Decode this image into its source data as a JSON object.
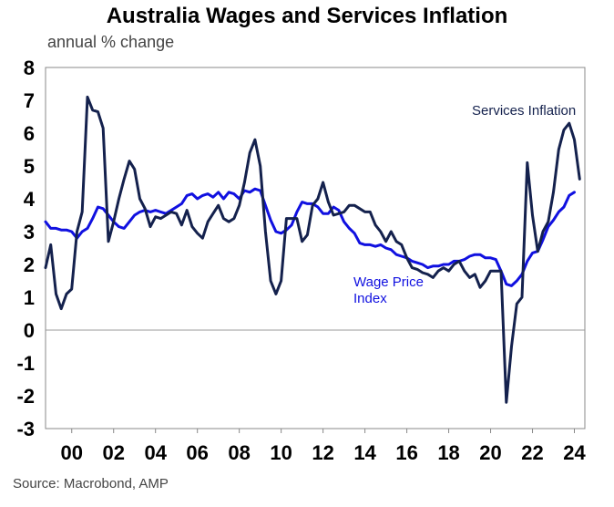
{
  "chart_data": {
    "type": "line",
    "title": "Australia Wages and Services Inflation",
    "subtitle": "annual % change",
    "source": "Source: Macrobond, AMP",
    "xlim": [
      1998.75,
      2024.5
    ],
    "ylim": [
      -3,
      8
    ],
    "yticks": [
      "8",
      "7",
      "6",
      "5",
      "4",
      "3",
      "2",
      "1",
      "0",
      "-1",
      "-2",
      "-3"
    ],
    "xticks": [
      {
        "x": 2000,
        "label": "00"
      },
      {
        "x": 2002,
        "label": "02"
      },
      {
        "x": 2004,
        "label": "04"
      },
      {
        "x": 2006,
        "label": "06"
      },
      {
        "x": 2008,
        "label": "08"
      },
      {
        "x": 2010,
        "label": "10"
      },
      {
        "x": 2012,
        "label": "12"
      },
      {
        "x": 2014,
        "label": "14"
      },
      {
        "x": 2016,
        "label": "16"
      },
      {
        "x": 2018,
        "label": "18"
      },
      {
        "x": 2020,
        "label": "20"
      },
      {
        "x": 2022,
        "label": "22"
      },
      {
        "x": 2024,
        "label": "24"
      }
    ],
    "grid": false,
    "series": [
      {
        "name": "Services Inflation",
        "color": "#14214d",
        "label_position": "right",
        "points": [
          [
            1998.75,
            1.9
          ],
          [
            1999.0,
            2.6
          ],
          [
            1999.25,
            1.1
          ],
          [
            1999.5,
            0.65
          ],
          [
            1999.75,
            1.1
          ],
          [
            2000.0,
            1.25
          ],
          [
            2000.25,
            3.0
          ],
          [
            2000.5,
            3.6
          ],
          [
            2000.75,
            7.1
          ],
          [
            2001.0,
            6.7
          ],
          [
            2001.25,
            6.65
          ],
          [
            2001.5,
            6.15
          ],
          [
            2001.75,
            2.7
          ],
          [
            2002.0,
            3.3
          ],
          [
            2002.25,
            4.0
          ],
          [
            2002.5,
            4.6
          ],
          [
            2002.75,
            5.15
          ],
          [
            2003.0,
            4.9
          ],
          [
            2003.25,
            4.0
          ],
          [
            2003.5,
            3.7
          ],
          [
            2003.75,
            3.15
          ],
          [
            2004.0,
            3.45
          ],
          [
            2004.25,
            3.4
          ],
          [
            2004.5,
            3.5
          ],
          [
            2004.75,
            3.6
          ],
          [
            2005.0,
            3.55
          ],
          [
            2005.25,
            3.2
          ],
          [
            2005.5,
            3.65
          ],
          [
            2005.75,
            3.15
          ],
          [
            2006.0,
            2.95
          ],
          [
            2006.25,
            2.8
          ],
          [
            2006.5,
            3.3
          ],
          [
            2006.75,
            3.55
          ],
          [
            2007.0,
            3.8
          ],
          [
            2007.25,
            3.4
          ],
          [
            2007.5,
            3.3
          ],
          [
            2007.75,
            3.4
          ],
          [
            2008.0,
            3.8
          ],
          [
            2008.25,
            4.5
          ],
          [
            2008.5,
            5.4
          ],
          [
            2008.75,
            5.8
          ],
          [
            2009.0,
            5.0
          ],
          [
            2009.25,
            3.0
          ],
          [
            2009.5,
            1.5
          ],
          [
            2009.75,
            1.1
          ],
          [
            2010.0,
            1.5
          ],
          [
            2010.25,
            3.4
          ],
          [
            2010.5,
            3.4
          ],
          [
            2010.75,
            3.4
          ],
          [
            2011.0,
            2.7
          ],
          [
            2011.25,
            2.9
          ],
          [
            2011.5,
            3.8
          ],
          [
            2011.75,
            4.0
          ],
          [
            2012.0,
            4.5
          ],
          [
            2012.25,
            3.9
          ],
          [
            2012.5,
            3.5
          ],
          [
            2012.75,
            3.55
          ],
          [
            2013.0,
            3.6
          ],
          [
            2013.25,
            3.8
          ],
          [
            2013.5,
            3.8
          ],
          [
            2013.75,
            3.7
          ],
          [
            2014.0,
            3.6
          ],
          [
            2014.25,
            3.6
          ],
          [
            2014.5,
            3.2
          ],
          [
            2014.75,
            3.0
          ],
          [
            2015.0,
            2.7
          ],
          [
            2015.25,
            3.0
          ],
          [
            2015.5,
            2.7
          ],
          [
            2015.75,
            2.6
          ],
          [
            2016.0,
            2.2
          ],
          [
            2016.25,
            1.9
          ],
          [
            2016.5,
            1.85
          ],
          [
            2016.75,
            1.75
          ],
          [
            2017.0,
            1.7
          ],
          [
            2017.25,
            1.6
          ],
          [
            2017.5,
            1.8
          ],
          [
            2017.75,
            1.9
          ],
          [
            2018.0,
            1.8
          ],
          [
            2018.25,
            2.0
          ],
          [
            2018.5,
            2.1
          ],
          [
            2018.75,
            1.8
          ],
          [
            2019.0,
            1.6
          ],
          [
            2019.25,
            1.7
          ],
          [
            2019.5,
            1.3
          ],
          [
            2019.75,
            1.5
          ],
          [
            2020.0,
            1.8
          ],
          [
            2020.25,
            1.8
          ],
          [
            2020.5,
            1.8
          ],
          [
            2020.75,
            -2.2
          ],
          [
            2021.0,
            -0.5
          ],
          [
            2021.25,
            0.8
          ],
          [
            2021.5,
            1.0
          ],
          [
            2021.75,
            5.1
          ],
          [
            2022.0,
            3.5
          ],
          [
            2022.25,
            2.4
          ],
          [
            2022.5,
            3.0
          ],
          [
            2022.75,
            3.3
          ],
          [
            2023.0,
            4.2
          ],
          [
            2023.25,
            5.5
          ],
          [
            2023.5,
            6.1
          ],
          [
            2023.75,
            6.3
          ],
          [
            2024.0,
            5.8
          ],
          [
            2024.25,
            4.6
          ]
        ]
      },
      {
        "name": "Wage Price Index",
        "color": "#1010e0",
        "label_position": "middle",
        "points": [
          [
            1998.75,
            3.3
          ],
          [
            1999.0,
            3.1
          ],
          [
            1999.25,
            3.1
          ],
          [
            1999.5,
            3.05
          ],
          [
            1999.75,
            3.05
          ],
          [
            2000.0,
            3.0
          ],
          [
            2000.25,
            2.8
          ],
          [
            2000.5,
            3.0
          ],
          [
            2000.75,
            3.1
          ],
          [
            2001.0,
            3.4
          ],
          [
            2001.25,
            3.75
          ],
          [
            2001.5,
            3.7
          ],
          [
            2001.75,
            3.5
          ],
          [
            2002.0,
            3.3
          ],
          [
            2002.25,
            3.15
          ],
          [
            2002.5,
            3.1
          ],
          [
            2002.75,
            3.3
          ],
          [
            2003.0,
            3.5
          ],
          [
            2003.25,
            3.6
          ],
          [
            2003.5,
            3.65
          ],
          [
            2003.75,
            3.6
          ],
          [
            2004.0,
            3.65
          ],
          [
            2004.25,
            3.6
          ],
          [
            2004.5,
            3.55
          ],
          [
            2004.75,
            3.65
          ],
          [
            2005.0,
            3.75
          ],
          [
            2005.25,
            3.85
          ],
          [
            2005.5,
            4.1
          ],
          [
            2005.75,
            4.15
          ],
          [
            2006.0,
            4.0
          ],
          [
            2006.25,
            4.1
          ],
          [
            2006.5,
            4.15
          ],
          [
            2006.75,
            4.05
          ],
          [
            2007.0,
            4.2
          ],
          [
            2007.25,
            4.0
          ],
          [
            2007.5,
            4.2
          ],
          [
            2007.75,
            4.15
          ],
          [
            2008.0,
            4.0
          ],
          [
            2008.25,
            4.25
          ],
          [
            2008.5,
            4.2
          ],
          [
            2008.75,
            4.3
          ],
          [
            2009.0,
            4.25
          ],
          [
            2009.25,
            3.8
          ],
          [
            2009.5,
            3.35
          ],
          [
            2009.75,
            3.0
          ],
          [
            2010.0,
            2.95
          ],
          [
            2010.25,
            3.05
          ],
          [
            2010.5,
            3.2
          ],
          [
            2010.75,
            3.6
          ],
          [
            2011.0,
            3.9
          ],
          [
            2011.25,
            3.85
          ],
          [
            2011.5,
            3.85
          ],
          [
            2011.75,
            3.75
          ],
          [
            2012.0,
            3.55
          ],
          [
            2012.25,
            3.55
          ],
          [
            2012.5,
            3.75
          ],
          [
            2012.75,
            3.65
          ],
          [
            2013.0,
            3.3
          ],
          [
            2013.25,
            3.1
          ],
          [
            2013.5,
            2.95
          ],
          [
            2013.75,
            2.65
          ],
          [
            2014.0,
            2.6
          ],
          [
            2014.25,
            2.6
          ],
          [
            2014.5,
            2.55
          ],
          [
            2014.75,
            2.6
          ],
          [
            2015.0,
            2.5
          ],
          [
            2015.25,
            2.45
          ],
          [
            2015.5,
            2.3
          ],
          [
            2015.75,
            2.25
          ],
          [
            2016.0,
            2.2
          ],
          [
            2016.25,
            2.1
          ],
          [
            2016.5,
            2.05
          ],
          [
            2016.75,
            2.0
          ],
          [
            2017.0,
            1.9
          ],
          [
            2017.25,
            1.95
          ],
          [
            2017.5,
            1.95
          ],
          [
            2017.75,
            2.0
          ],
          [
            2018.0,
            2.0
          ],
          [
            2018.25,
            2.1
          ],
          [
            2018.5,
            2.1
          ],
          [
            2018.75,
            2.15
          ],
          [
            2019.0,
            2.25
          ],
          [
            2019.25,
            2.3
          ],
          [
            2019.5,
            2.3
          ],
          [
            2019.75,
            2.2
          ],
          [
            2020.0,
            2.2
          ],
          [
            2020.25,
            2.15
          ],
          [
            2020.5,
            1.8
          ],
          [
            2020.75,
            1.4
          ],
          [
            2021.0,
            1.35
          ],
          [
            2021.25,
            1.5
          ],
          [
            2021.5,
            1.7
          ],
          [
            2021.75,
            2.1
          ],
          [
            2022.0,
            2.35
          ],
          [
            2022.25,
            2.4
          ],
          [
            2022.5,
            2.75
          ],
          [
            2022.75,
            3.15
          ],
          [
            2023.0,
            3.35
          ],
          [
            2023.25,
            3.6
          ],
          [
            2023.5,
            3.75
          ],
          [
            2023.75,
            4.1
          ],
          [
            2024.0,
            4.2
          ]
        ]
      }
    ]
  }
}
